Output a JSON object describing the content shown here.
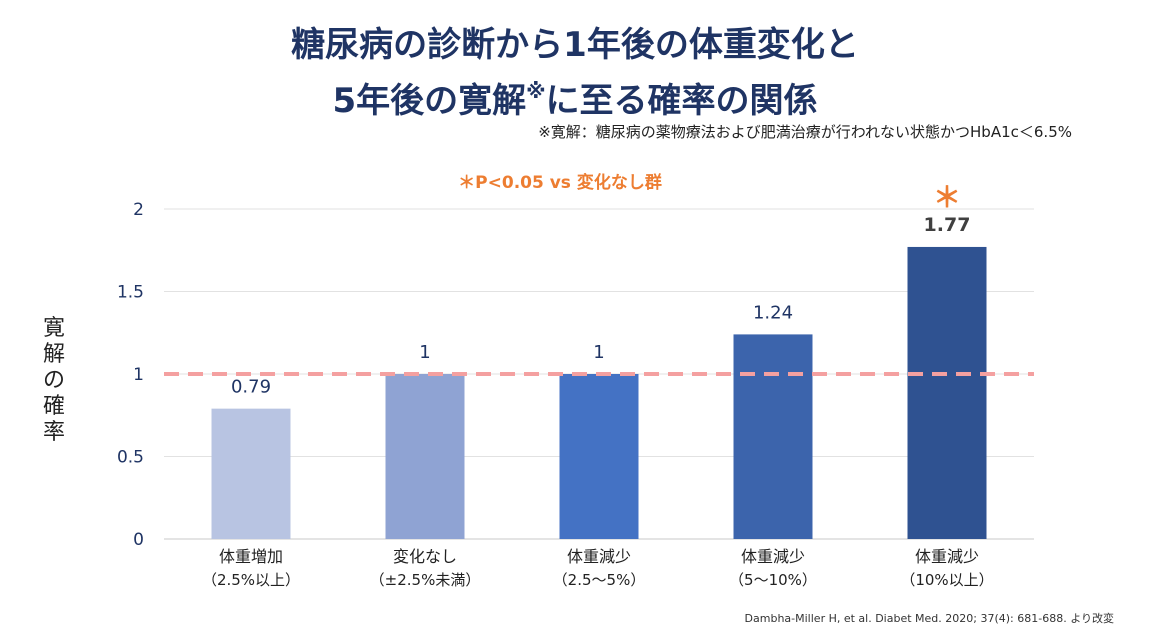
{
  "title": {
    "line1": "糖尿病の診断から1年後の体重変化と",
    "line2_main": "5年後の寛解",
    "line2_mark": "※",
    "line2_tail": "に至る確率の関係"
  },
  "note": "※寛解：糖尿病の薬物療法および肥満治療が行われない状態かつHbA1c＜6.5%",
  "ylabel_chars": [
    "寛",
    "解",
    "の",
    "確",
    "率"
  ],
  "footer": "Dambha-Miller H, et al. Diabet Med. 2020; 37(4): 681-688. より改変",
  "chart_data": {
    "type": "bar",
    "title": "",
    "ylabel": "寛解の確率",
    "ylim": [
      0,
      2
    ],
    "yticks": [
      "0",
      "0.5",
      "1",
      "1.5",
      "2"
    ],
    "grid": true,
    "reference_line": 1,
    "reference_color": "#f4a0a0",
    "significance_label": "＊P<0.05 vs 変化なし群",
    "significance_color": "#ed7d31",
    "categories": [
      {
        "line1": "体重増加",
        "line2": "（2.5%以上）"
      },
      {
        "line1": "変化なし",
        "line2": "（±2.5%未満）"
      },
      {
        "line1": "体重減少",
        "line2": "（2.5～5%）"
      },
      {
        "line1": "体重減少",
        "line2": "（5～10%）"
      },
      {
        "line1": "体重減少",
        "line2": "（10%以上）"
      }
    ],
    "values": [
      0.79,
      1,
      1,
      1.24,
      1.77
    ],
    "value_labels": [
      "0.79",
      "1",
      "1",
      "1.24",
      "1.77"
    ],
    "colors": [
      "#b8c4e2",
      "#8fa3d3",
      "#4472c4",
      "#3c64ac",
      "#2f5291"
    ],
    "significant": [
      false,
      false,
      false,
      false,
      true
    ],
    "significance_marker": "＊"
  }
}
